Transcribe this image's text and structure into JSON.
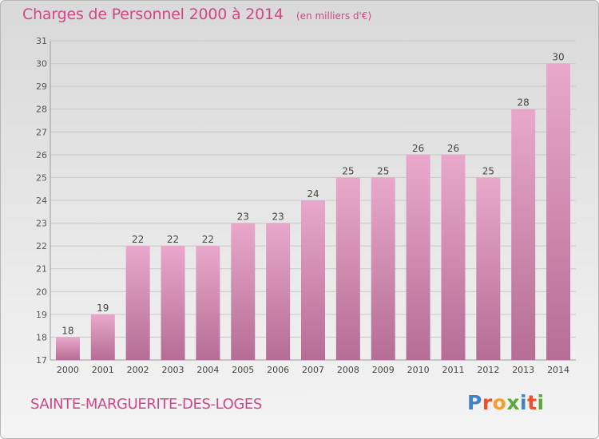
{
  "header": {
    "title": "Charges de Personnel 2000 à 2014",
    "subtitle": "(en milliers d'€)"
  },
  "footer": {
    "place": "SAINTE-MARGUERITE-DES-LOGES",
    "logo": "Proxiti"
  },
  "colors": {
    "title": "#d24688",
    "bar_top": "#e9a8cb",
    "bar_bottom": "#b56d95",
    "logo_letters": [
      "#3f82c8",
      "#e7512e",
      "#f0a030",
      "#5aa83c",
      "#3f82c8",
      "#e7512e",
      "#5aa83c"
    ]
  },
  "chart_data": {
    "type": "bar",
    "title": "Charges de Personnel 2000 à 2014",
    "subtitle": "(en milliers d'€)",
    "xlabel": "",
    "ylabel": "",
    "categories": [
      "2000",
      "2001",
      "2002",
      "2003",
      "2004",
      "2005",
      "2006",
      "2007",
      "2008",
      "2009",
      "2010",
      "2011",
      "2012",
      "2013",
      "2014"
    ],
    "values": [
      18,
      19,
      22,
      22,
      22,
      23,
      23,
      24,
      25,
      25,
      26,
      26,
      25,
      28,
      30
    ],
    "ylim": [
      17,
      31
    ],
    "yticks": [
      17,
      18,
      19,
      20,
      21,
      22,
      23,
      24,
      25,
      26,
      27,
      28,
      29,
      30,
      31
    ],
    "grid": true,
    "legend": "none"
  }
}
